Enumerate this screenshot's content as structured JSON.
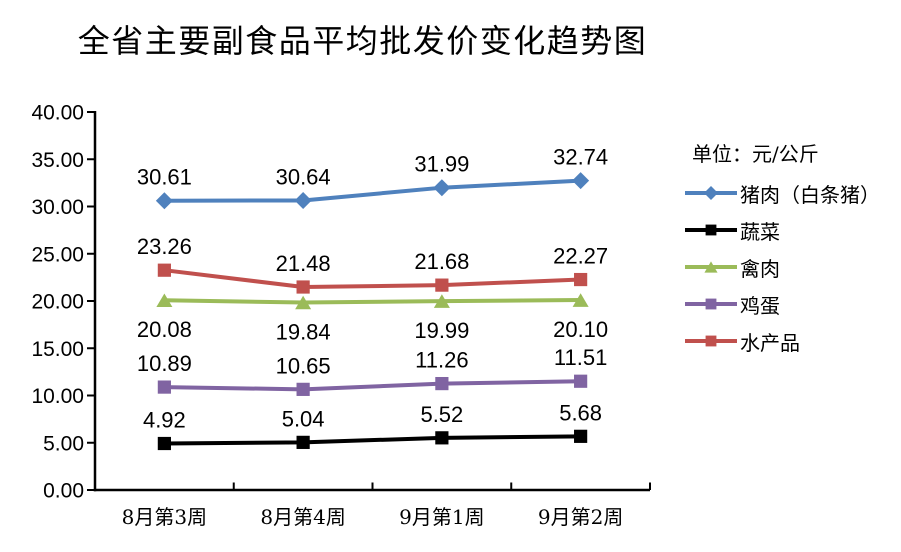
{
  "chart_data": {
    "type": "line",
    "title": "全省主要副食品平均批发价变化趋势图",
    "unit_label": "单位：元/公斤",
    "categories": [
      "8月第3周",
      "8月第4周",
      "9月第1周",
      "9月第2周"
    ],
    "series": [
      {
        "id": "pork",
        "name": "猪肉（白条猪）",
        "color": "#4F81BD",
        "marker": "diamond",
        "label_position": "above",
        "values": [
          30.61,
          30.64,
          31.99,
          32.74
        ]
      },
      {
        "id": "vegetables",
        "name": "蔬菜",
        "color": "#000000",
        "marker": "square",
        "label_position": "above",
        "values": [
          4.92,
          5.04,
          5.52,
          5.68
        ]
      },
      {
        "id": "poultry",
        "name": "禽肉",
        "color": "#9BBB59",
        "marker": "triangle",
        "label_position": "below",
        "values": [
          20.08,
          19.84,
          19.99,
          20.1
        ]
      },
      {
        "id": "eggs",
        "name": "鸡蛋",
        "color": "#8064A2",
        "marker": "square",
        "label_position": "above",
        "values": [
          10.89,
          10.65,
          11.26,
          11.51
        ]
      },
      {
        "id": "aquatic-products",
        "name": "水产品",
        "color": "#C0504D",
        "marker": "square",
        "label_position": "above",
        "values": [
          23.26,
          21.48,
          21.68,
          22.27
        ]
      }
    ],
    "y_axis": {
      "min": 0,
      "max": 40,
      "step": 5,
      "tick_labels": [
        "0.00",
        "5.00",
        "10.00",
        "15.00",
        "20.00",
        "25.00",
        "30.00",
        "35.00",
        "40.00"
      ]
    },
    "grid": false,
    "axis_color": "#000000",
    "legend_position": "right"
  }
}
